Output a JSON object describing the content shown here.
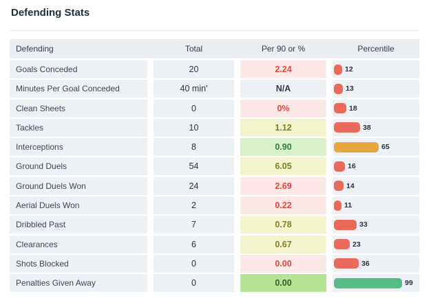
{
  "page_title": "Defending Stats",
  "table": {
    "columns": [
      "Defending",
      "Total",
      "Per 90 or %",
      "Percentile"
    ],
    "rows": [
      {
        "label": "Goals Conceded",
        "total": "20",
        "per90": "2.24",
        "per90_tier": "bad",
        "percentile": 12,
        "bar_color": "red"
      },
      {
        "label": "Minutes Per Goal Conceded",
        "total": "40 min'",
        "per90": "N/A",
        "per90_tier": "neutral",
        "percentile": 13,
        "bar_color": "red"
      },
      {
        "label": "Clean Sheets",
        "total": "0",
        "per90": "0%",
        "per90_tier": "bad",
        "percentile": 18,
        "bar_color": "red"
      },
      {
        "label": "Tackles",
        "total": "10",
        "per90": "1.12",
        "per90_tier": "mid",
        "percentile": 38,
        "bar_color": "red"
      },
      {
        "label": "Interceptions",
        "total": "8",
        "per90": "0.90",
        "per90_tier": "good",
        "percentile": 65,
        "bar_color": "orange"
      },
      {
        "label": "Ground Duels",
        "total": "54",
        "per90": "6.05",
        "per90_tier": "mid",
        "percentile": 16,
        "bar_color": "red"
      },
      {
        "label": "Ground Duels Won",
        "total": "24",
        "per90": "2.69",
        "per90_tier": "bad",
        "percentile": 14,
        "bar_color": "red"
      },
      {
        "label": "Aerial Duels Won",
        "total": "2",
        "per90": "0.22",
        "per90_tier": "bad",
        "percentile": 11,
        "bar_color": "red"
      },
      {
        "label": "Dribbled Past",
        "total": "7",
        "per90": "0.78",
        "per90_tier": "mid",
        "percentile": 33,
        "bar_color": "red"
      },
      {
        "label": "Clearances",
        "total": "6",
        "per90": "0.67",
        "per90_tier": "mid",
        "percentile": 23,
        "bar_color": "red"
      },
      {
        "label": "Shots Blocked",
        "total": "0",
        "per90": "0.00",
        "per90_tier": "bad",
        "percentile": 36,
        "bar_color": "red"
      },
      {
        "label": "Penalties Given Away",
        "total": "0",
        "per90": "0.00",
        "per90_tier": "excellent",
        "percentile": 99,
        "bar_color": "green"
      }
    ]
  },
  "colors": {
    "title_text": "#222d3e",
    "header_bg": "#eaedf2",
    "cell_bg": "#edf0f4",
    "per90_bad_bg": "#fce9e7",
    "per90_bad_text": "#e2443a",
    "per90_mid_bg": "#f3f4ce",
    "per90_mid_text": "#7e8120",
    "per90_good_bg": "#daf0cb",
    "per90_good_text": "#2f7d34",
    "per90_excellent_bg": "#b4e393",
    "per90_excellent_text": "#2c5f2e",
    "bar_red": "#e96a5a",
    "bar_orange": "#e8a63e",
    "bar_green": "#57bc85"
  }
}
